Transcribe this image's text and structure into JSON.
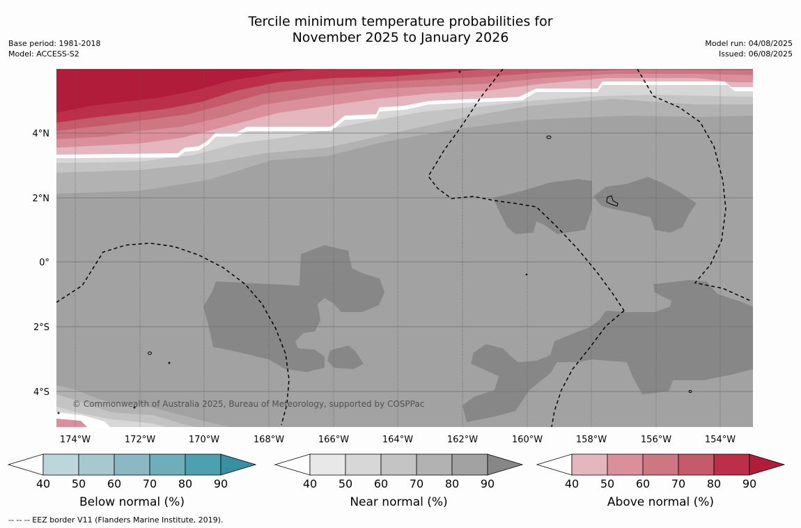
{
  "title": {
    "line1": "Tercile minimum temperature probabilities for",
    "line2": "November 2025 to January 2026"
  },
  "meta": {
    "base_period": "Base period: 1981-2018",
    "model": "Model: ACCESS-S2",
    "model_run": "Model run: 04/08/2025",
    "issued": "Issued: 06/08/2025"
  },
  "map": {
    "lat_labels": [
      "4°N",
      "2°N",
      "0°",
      "2°S",
      "4°S"
    ],
    "lon_labels": [
      "174°W",
      "172°W",
      "170°W",
      "168°W",
      "166°W",
      "164°W",
      "162°W",
      "160°W",
      "158°W",
      "156°W",
      "154°W"
    ],
    "copyright": "© Commonwealth of Australia 2025, Bureau of Meteorology, supported by COSPPac"
  },
  "legends": [
    {
      "label": "Below normal (%)",
      "ticks": [
        "40",
        "50",
        "60",
        "70",
        "80",
        "90"
      ],
      "colors": [
        "#ffffff",
        "#bdd6dc",
        "#a7c8ce",
        "#8bb8c3",
        "#6eaebb",
        "#4da0af",
        "#3690a2"
      ]
    },
    {
      "label": "Near normal (%)",
      "ticks": [
        "40",
        "50",
        "60",
        "70",
        "80",
        "90"
      ],
      "colors": [
        "#ffffff",
        "#e8e8e8",
        "#d7d7d7",
        "#c4c4c4",
        "#b2b2b2",
        "#a2a2a2",
        "#878787"
      ]
    },
    {
      "label": "Above normal (%)",
      "ticks": [
        "40",
        "50",
        "60",
        "70",
        "80",
        "90"
      ],
      "colors": [
        "#ffffff",
        "#e4b6bd",
        "#d9909b",
        "#cc7782",
        "#c45a6a",
        "#bb3048",
        "#b11c3a"
      ]
    }
  ],
  "footnote": "--  --  -- EEZ border V11 (Flanders Marine Institute, 2019)."
}
